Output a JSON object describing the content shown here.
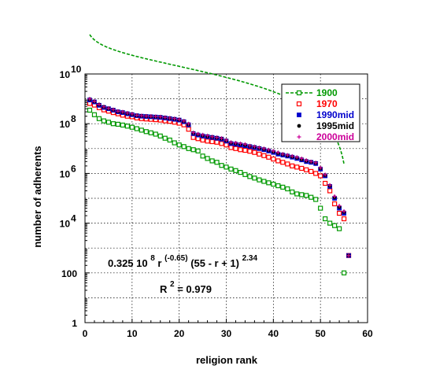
{
  "chart_data": {
    "type": "scatter",
    "xlabel": "religion  rank",
    "ylabel": "number  of  adherents",
    "xlim": [
      0,
      60
    ],
    "ylim": [
      1,
      10000000000
    ],
    "yscale": "log",
    "grid": true,
    "legend_position": "top-right",
    "x_ticks": [
      "0",
      "10",
      "20",
      "30",
      "40",
      "50",
      "60"
    ],
    "y_ticks": [
      {
        "value": 1,
        "label": "1",
        "exp": ""
      },
      {
        "value": 100,
        "label": "100",
        "exp": ""
      },
      {
        "value": 10000,
        "label": "10",
        "exp": "4"
      },
      {
        "value": 1000000,
        "label": "10",
        "exp": "6"
      },
      {
        "value": 100000000,
        "label": "10",
        "exp": "8"
      },
      {
        "value": 10000000000,
        "label": "10",
        "exp": "10"
      }
    ],
    "annotations": {
      "formula": {
        "coef": "0.325 10",
        "coef_exp": "8",
        "r": " r",
        "r_exp": "(-0.65)",
        "paren": " (55 - r + 1)",
        "paren_exp": "2.34"
      },
      "r2": {
        "label": "R",
        "exp": "2",
        "value": " = 0.979"
      }
    },
    "series": [
      {
        "name": "1900",
        "color": "#009900",
        "marker": "square-open",
        "line": "dashed",
        "points": [
          [
            1,
            350000000
          ],
          [
            2,
            230000000
          ],
          [
            3,
            160000000
          ],
          [
            4,
            130000000
          ],
          [
            5,
            115000000
          ],
          [
            6,
            100000000
          ],
          [
            7,
            95000000
          ],
          [
            8,
            88000000
          ],
          [
            9,
            80000000
          ],
          [
            10,
            72000000
          ],
          [
            11,
            63000000
          ],
          [
            12,
            55000000
          ],
          [
            13,
            48000000
          ],
          [
            14,
            43000000
          ],
          [
            15,
            38000000
          ],
          [
            16,
            32000000
          ],
          [
            17,
            26000000
          ],
          [
            18,
            22000000
          ],
          [
            19,
            17000000
          ],
          [
            20,
            14000000
          ],
          [
            21,
            12000000
          ],
          [
            22,
            10000000
          ],
          [
            23,
            9000000
          ],
          [
            24,
            8000000
          ],
          [
            25,
            5000000
          ],
          [
            26,
            4000000
          ],
          [
            27,
            3200000
          ],
          [
            28,
            2800000
          ],
          [
            29,
            2100000
          ],
          [
            30,
            1800000
          ],
          [
            31,
            1500000
          ],
          [
            32,
            1300000
          ],
          [
            33,
            1100000
          ],
          [
            34,
            900000
          ],
          [
            35,
            750000
          ],
          [
            36,
            650000
          ],
          [
            37,
            550000
          ],
          [
            38,
            480000
          ],
          [
            39,
            420000
          ],
          [
            40,
            370000
          ],
          [
            41,
            320000
          ],
          [
            42,
            280000
          ],
          [
            43,
            240000
          ],
          [
            44,
            180000
          ],
          [
            45,
            150000
          ],
          [
            46,
            140000
          ],
          [
            47,
            130000
          ],
          [
            48,
            110000
          ],
          [
            49,
            90000
          ],
          [
            50,
            40000
          ],
          [
            51,
            15000
          ],
          [
            52,
            10000
          ],
          [
            53,
            8000
          ],
          [
            54,
            6000
          ],
          [
            55,
            100
          ]
        ]
      },
      {
        "name": "1970",
        "color": "#ff0000",
        "marker": "square-open",
        "line": "none",
        "points": [
          [
            1,
            650000000
          ],
          [
            2,
            560000000
          ],
          [
            3,
            440000000
          ],
          [
            4,
            360000000
          ],
          [
            5,
            320000000
          ],
          [
            6,
            280000000
          ],
          [
            7,
            250000000
          ],
          [
            8,
            220000000
          ],
          [
            9,
            200000000
          ],
          [
            10,
            190000000
          ],
          [
            11,
            170000000
          ],
          [
            12,
            160000000
          ],
          [
            13,
            155000000
          ],
          [
            14,
            150000000
          ],
          [
            15,
            145000000
          ],
          [
            16,
            140000000
          ],
          [
            17,
            130000000
          ],
          [
            18,
            125000000
          ],
          [
            19,
            115000000
          ],
          [
            20,
            105000000
          ],
          [
            21,
            90000000
          ],
          [
            22,
            60000000
          ],
          [
            23,
            28000000
          ],
          [
            24,
            25000000
          ],
          [
            25,
            22000000
          ],
          [
            26,
            20000000
          ],
          [
            27,
            19000000
          ],
          [
            28,
            18000000
          ],
          [
            29,
            16000000
          ],
          [
            30,
            14000000
          ],
          [
            31,
            11000000
          ],
          [
            32,
            10000000
          ],
          [
            33,
            9000000
          ],
          [
            34,
            8500000
          ],
          [
            35,
            7800000
          ],
          [
            36,
            7000000
          ],
          [
            37,
            6000000
          ],
          [
            38,
            5200000
          ],
          [
            39,
            4500000
          ],
          [
            40,
            3800000
          ],
          [
            41,
            3200000
          ],
          [
            42,
            2800000
          ],
          [
            43,
            2400000
          ],
          [
            44,
            2000000
          ],
          [
            45,
            1800000
          ],
          [
            46,
            1600000
          ],
          [
            47,
            1400000
          ],
          [
            48,
            1200000
          ],
          [
            49,
            1000000
          ],
          [
            50,
            800000
          ],
          [
            51,
            400000
          ],
          [
            52,
            200000
          ],
          [
            53,
            60000
          ],
          [
            54,
            25000
          ],
          [
            55,
            15000
          ],
          [
            56,
            500
          ]
        ]
      },
      {
        "name": "1990mid",
        "color": "#0000cc",
        "marker": "square-filled",
        "line": "none",
        "points": [
          [
            1,
            900000000
          ],
          [
            2,
            750000000
          ],
          [
            3,
            550000000
          ],
          [
            4,
            450000000
          ],
          [
            5,
            400000000
          ],
          [
            6,
            350000000
          ],
          [
            7,
            300000000
          ],
          [
            8,
            280000000
          ],
          [
            9,
            250000000
          ],
          [
            10,
            230000000
          ],
          [
            11,
            210000000
          ],
          [
            12,
            200000000
          ],
          [
            13,
            195000000
          ],
          [
            14,
            190000000
          ],
          [
            15,
            185000000
          ],
          [
            16,
            180000000
          ],
          [
            17,
            170000000
          ],
          [
            18,
            160000000
          ],
          [
            19,
            150000000
          ],
          [
            20,
            140000000
          ],
          [
            21,
            120000000
          ],
          [
            22,
            90000000
          ],
          [
            23,
            40000000
          ],
          [
            24,
            35000000
          ],
          [
            25,
            32000000
          ],
          [
            26,
            30000000
          ],
          [
            27,
            28000000
          ],
          [
            28,
            26000000
          ],
          [
            29,
            24000000
          ],
          [
            30,
            20000000
          ],
          [
            31,
            16000000
          ],
          [
            32,
            15000000
          ],
          [
            33,
            14000000
          ],
          [
            34,
            13000000
          ],
          [
            35,
            12000000
          ],
          [
            36,
            11000000
          ],
          [
            37,
            10000000
          ],
          [
            38,
            9000000
          ],
          [
            39,
            8000000
          ],
          [
            40,
            7000000
          ],
          [
            41,
            6000000
          ],
          [
            42,
            5500000
          ],
          [
            43,
            5000000
          ],
          [
            44,
            4500000
          ],
          [
            45,
            4000000
          ],
          [
            46,
            3500000
          ],
          [
            47,
            3000000
          ],
          [
            48,
            2800000
          ],
          [
            49,
            2500000
          ],
          [
            50,
            1500000
          ],
          [
            51,
            800000
          ],
          [
            52,
            300000
          ],
          [
            53,
            100000
          ],
          [
            54,
            40000
          ],
          [
            55,
            25000
          ],
          [
            56,
            500
          ]
        ]
      },
      {
        "name": "1995mid",
        "color": "#000000",
        "marker": "circle-filled",
        "line": "none",
        "points": [
          [
            1,
            950000000
          ],
          [
            2,
            780000000
          ],
          [
            3,
            580000000
          ],
          [
            4,
            470000000
          ],
          [
            5,
            410000000
          ],
          [
            6,
            360000000
          ],
          [
            7,
            310000000
          ],
          [
            8,
            290000000
          ],
          [
            9,
            260000000
          ],
          [
            10,
            240000000
          ],
          [
            11,
            215000000
          ],
          [
            12,
            205000000
          ],
          [
            13,
            200000000
          ],
          [
            14,
            195000000
          ],
          [
            15,
            190000000
          ],
          [
            16,
            185000000
          ],
          [
            17,
            175000000
          ],
          [
            18,
            165000000
          ],
          [
            19,
            155000000
          ],
          [
            20,
            145000000
          ],
          [
            21,
            125000000
          ],
          [
            22,
            95000000
          ],
          [
            23,
            42000000
          ],
          [
            24,
            37000000
          ],
          [
            25,
            34000000
          ],
          [
            26,
            31000000
          ],
          [
            27,
            29000000
          ],
          [
            28,
            27000000
          ],
          [
            29,
            25000000
          ],
          [
            30,
            21000000
          ],
          [
            31,
            17000000
          ],
          [
            32,
            16000000
          ],
          [
            33,
            15000000
          ],
          [
            34,
            14000000
          ],
          [
            35,
            12500000
          ],
          [
            36,
            11500000
          ],
          [
            37,
            10500000
          ],
          [
            38,
            9500000
          ],
          [
            39,
            8500000
          ],
          [
            40,
            7500000
          ],
          [
            41,
            6500000
          ],
          [
            42,
            5800000
          ],
          [
            43,
            5200000
          ],
          [
            44,
            4700000
          ],
          [
            45,
            4200000
          ],
          [
            46,
            3700000
          ],
          [
            47,
            3200000
          ],
          [
            48,
            2900000
          ],
          [
            49,
            2600000
          ],
          [
            50,
            1600000
          ],
          [
            51,
            850000
          ],
          [
            52,
            320000
          ],
          [
            53,
            110000
          ],
          [
            54,
            45000
          ],
          [
            55,
            28000
          ],
          [
            56,
            500
          ]
        ]
      },
      {
        "name": "2000mid",
        "color": "#cc0099",
        "marker": "plus",
        "line": "none",
        "points": [
          [
            1,
            1000000000
          ],
          [
            2,
            800000000
          ],
          [
            3,
            600000000
          ],
          [
            4,
            480000000
          ],
          [
            5,
            420000000
          ],
          [
            6,
            370000000
          ],
          [
            7,
            320000000
          ],
          [
            8,
            300000000
          ],
          [
            9,
            270000000
          ],
          [
            10,
            250000000
          ],
          [
            11,
            220000000
          ],
          [
            12,
            210000000
          ],
          [
            13,
            205000000
          ],
          [
            14,
            200000000
          ],
          [
            15,
            195000000
          ],
          [
            16,
            190000000
          ],
          [
            17,
            180000000
          ],
          [
            18,
            170000000
          ],
          [
            19,
            160000000
          ],
          [
            20,
            150000000
          ],
          [
            21,
            130000000
          ],
          [
            22,
            100000000
          ],
          [
            23,
            44000000
          ],
          [
            24,
            39000000
          ],
          [
            25,
            36000000
          ],
          [
            26,
            33000000
          ],
          [
            27,
            30000000
          ],
          [
            28,
            28000000
          ],
          [
            29,
            26000000
          ],
          [
            30,
            22000000
          ],
          [
            31,
            18000000
          ],
          [
            32,
            17000000
          ],
          [
            33,
            16000000
          ],
          [
            34,
            15000000
          ],
          [
            35,
            13000000
          ],
          [
            36,
            12000000
          ],
          [
            37,
            11000000
          ],
          [
            38,
            10000000
          ],
          [
            39,
            9000000
          ],
          [
            40,
            8000000
          ],
          [
            41,
            7000000
          ],
          [
            42,
            6000000
          ],
          [
            43,
            5500000
          ],
          [
            44,
            5000000
          ],
          [
            45,
            4500000
          ],
          [
            46,
            4000000
          ],
          [
            47,
            3400000
          ],
          [
            48,
            3000000
          ],
          [
            49,
            2700000
          ],
          [
            50,
            1700000
          ],
          [
            51,
            900000
          ],
          [
            52,
            340000
          ],
          [
            53,
            120000
          ],
          [
            54,
            50000
          ],
          [
            55,
            30000
          ],
          [
            56,
            500
          ]
        ]
      }
    ],
    "fit_curve": {
      "coef": 32500000,
      "alpha": -0.65,
      "N": 55,
      "beta": 2.34,
      "color": "#009900",
      "line": "dashed"
    }
  }
}
